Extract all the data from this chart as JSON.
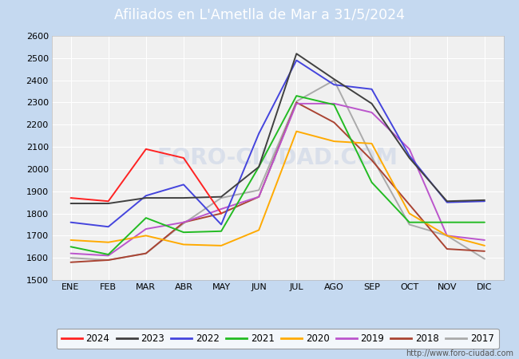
{
  "title": "Afiliados en L'Ametlla de Mar a 31/5/2024",
  "title_bg_color": "#5b9bd5",
  "title_text_color": "white",
  "plot_bg_color": "#f0f0f0",
  "fig_bg_color": "#c5d9f0",
  "months": [
    "ENE",
    "FEB",
    "MAR",
    "ABR",
    "MAY",
    "JUN",
    "JUL",
    "AGO",
    "SEP",
    "OCT",
    "NOV",
    "DIC"
  ],
  "ylim": [
    1500,
    2600
  ],
  "yticks": [
    1500,
    1600,
    1700,
    1800,
    1900,
    2000,
    2100,
    2200,
    2300,
    2400,
    2500,
    2600
  ],
  "series": {
    "2024": {
      "color": "#ff2222",
      "data": [
        1870,
        1855,
        2090,
        2050,
        1800,
        null,
        null,
        null,
        null,
        null,
        null,
        null
      ]
    },
    "2023": {
      "color": "#404040",
      "data": [
        1845,
        1845,
        1870,
        1870,
        1875,
        2010,
        2520,
        2405,
        2295,
        2050,
        1855,
        1860
      ]
    },
    "2022": {
      "color": "#4444dd",
      "data": [
        1760,
        1740,
        1880,
        1930,
        1750,
        2160,
        2490,
        2380,
        2360,
        2060,
        1850,
        1855
      ]
    },
    "2021": {
      "color": "#22bb22",
      "data": [
        1650,
        1615,
        1780,
        1715,
        1720,
        2010,
        2330,
        2290,
        1940,
        1760,
        1760,
        1760
      ]
    },
    "2020": {
      "color": "#ffaa00",
      "data": [
        1680,
        1670,
        1700,
        1660,
        1655,
        1725,
        2170,
        2125,
        2115,
        1800,
        1700,
        1655
      ]
    },
    "2019": {
      "color": "#bb55cc",
      "data": [
        1620,
        1610,
        1730,
        1760,
        1820,
        1875,
        2295,
        2295,
        2255,
        2090,
        1700,
        1680
      ]
    },
    "2018": {
      "color": "#aa4433",
      "data": [
        1580,
        1590,
        1620,
        1760,
        1800,
        1875,
        2300,
        2210,
        2040,
        1840,
        1640,
        1630
      ]
    },
    "2017": {
      "color": "#aaaaaa",
      "data": [
        1600,
        1590,
        1620,
        1755,
        1870,
        1905,
        2305,
        2400,
        2055,
        1750,
        1700,
        1595
      ]
    }
  },
  "watermark": "FORO-CIUDAD.COM",
  "url": "http://www.foro-ciudad.com",
  "grid_color": "#cccccc"
}
